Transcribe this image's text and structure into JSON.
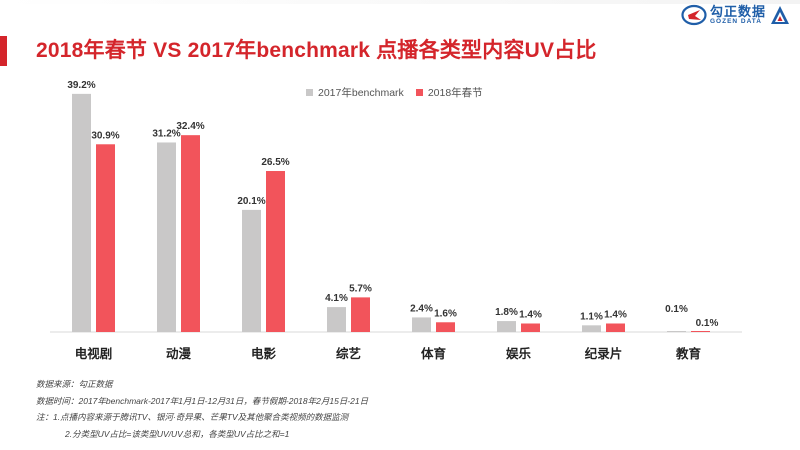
{
  "title": "2018年春节 VS 2017年benchmark 点播各类型内容UV占比",
  "logo": {
    "cn": "勾正数据",
    "en": "GOZEN DATA"
  },
  "colors": {
    "accent": "#d4252b",
    "series_2017": "#c9c8c8",
    "series_2018": "#f2545b"
  },
  "chart_data": {
    "type": "bar",
    "title": "2018年春节 VS 2017年benchmark 点播各类型内容UV占比",
    "categories": [
      "电视剧",
      "动漫",
      "电影",
      "综艺",
      "体育",
      "娱乐",
      "纪录片",
      "教育"
    ],
    "series": [
      {
        "name": "2017年benchmark",
        "values": [
          39.2,
          31.2,
          20.1,
          4.1,
          2.4,
          1.8,
          1.1,
          0.1
        ],
        "labels": [
          "39.2%",
          "31.2%",
          "20.1%",
          "4.1%",
          "2.4%",
          "1.8%",
          "1.1%",
          "0.1%"
        ]
      },
      {
        "name": "2018年春节",
        "values": [
          30.9,
          32.4,
          26.5,
          5.7,
          1.6,
          1.4,
          1.4,
          0.1
        ],
        "labels": [
          "30.9%",
          "32.4%",
          "26.5%",
          "5.7%",
          "1.6%",
          "1.4%",
          "1.4%",
          "0.1%"
        ]
      }
    ],
    "xlabel": "",
    "ylabel": "",
    "ylim": [
      0,
      40
    ],
    "legend_position": "top-center",
    "grid": false
  },
  "notes": {
    "source": "数据来源：勾正数据",
    "period": "数据时间：2017年benchmark-2017年1月1日-12月31日，春节假期-2018年2月15日-21日",
    "note1": "注：1.点播内容来源于腾讯TV、银河·奇异果、芒果TV及其他聚合类视频的数据监测",
    "note2": "2.分类型UV占比=该类型UV/UV总和，各类型UV占比之和=1"
  }
}
